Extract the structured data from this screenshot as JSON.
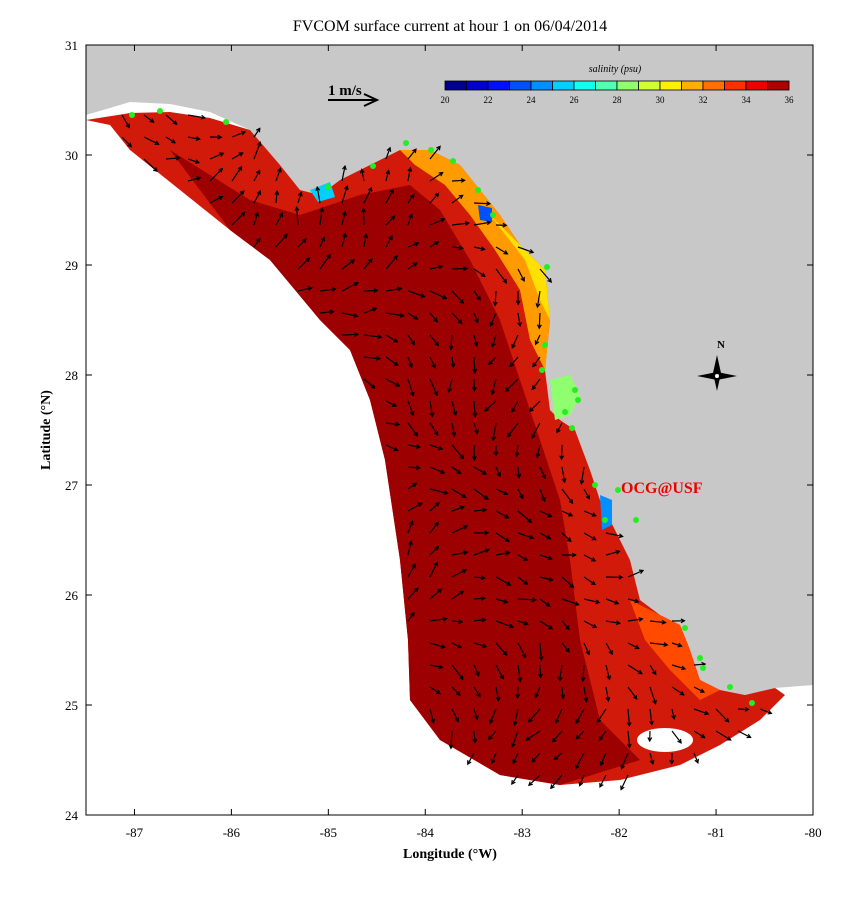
{
  "chart_data": {
    "type": "heatmap",
    "title": "FVCOM surface current at hour 1 on 06/04/2014",
    "xlabel": "Longitude (°W)",
    "ylabel": "Latitude (°N)",
    "xlim": [
      -87.5,
      -80
    ],
    "ylim": [
      24,
      31
    ],
    "xticks": [
      "-87",
      "-86",
      "-85",
      "-84",
      "-83",
      "-82",
      "-81",
      "-80"
    ],
    "yticks": [
      "24",
      "25",
      "26",
      "27",
      "28",
      "29",
      "30",
      "31"
    ],
    "grid": false,
    "scale_arrow_label": "1 m/s",
    "colorbar": {
      "label": "salinity (psu)",
      "range": [
        20,
        36
      ],
      "placement": "top-right",
      "ticks": [
        "20",
        "22",
        "24",
        "26",
        "28",
        "30",
        "32",
        "34",
        "36"
      ],
      "colors": [
        "#00008f",
        "#0000d0",
        "#0010ff",
        "#0050ff",
        "#0090ff",
        "#00d0ff",
        "#10ffef",
        "#50ffaf",
        "#90ff6f",
        "#d0ff2f",
        "#ffef00",
        "#ffaf00",
        "#ff7000",
        "#ff3000",
        "#ef0000",
        "#af0000"
      ]
    },
    "land_color": "#c8c8c8",
    "watermark": "OCG@USF",
    "north_label": "N"
  }
}
